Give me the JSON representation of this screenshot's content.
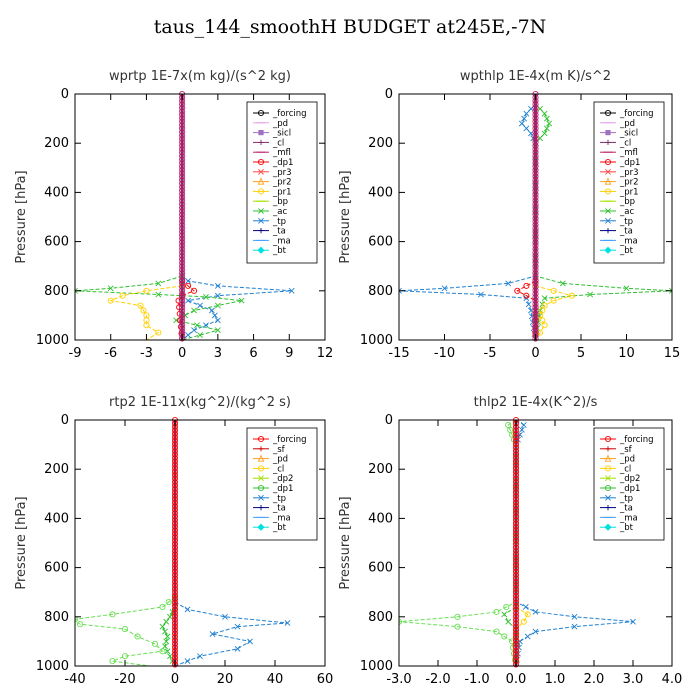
{
  "figure": {
    "title": "taus_144_smoothH  BUDGET at245E,-7N"
  },
  "chart_data": [
    {
      "type": "line",
      "title": "wprtp   1E-7x(m kg)/(s^2 kg)",
      "ylabel": "Pressure [hPa]",
      "xlim": [
        -9,
        12
      ],
      "ylim": [
        1000,
        0
      ],
      "xticks": [
        "-9",
        "-6",
        "-3",
        "0",
        "3",
        "6",
        "9",
        "12"
      ],
      "yticks": [
        "0",
        "200",
        "400",
        "600",
        "800",
        "1000"
      ],
      "legend": {
        "position": "top-right",
        "entries": [
          {
            "name": "_forcing",
            "color": "#000000",
            "marker": "o"
          },
          {
            "name": "_pd",
            "color": "#e8a0e8",
            "marker": "-"
          },
          {
            "name": "_sicl",
            "color": "#a070c0",
            "marker": "s"
          },
          {
            "name": "_cl",
            "color": "#7a2a6a",
            "marker": "+"
          },
          {
            "name": "_mfl",
            "color": "#c0206a",
            "marker": "-"
          },
          {
            "name": "_dp1",
            "color": "#ff0000",
            "marker": "o"
          },
          {
            "name": "_pr3",
            "color": "#ff4444",
            "marker": "x"
          },
          {
            "name": "_pr2",
            "color": "#ffa020",
            "marker": "^"
          },
          {
            "name": "_pr1",
            "color": "#ffd000",
            "marker": "o"
          },
          {
            "name": "_bp",
            "color": "#a0e000",
            "marker": "-"
          },
          {
            "name": "_ac",
            "color": "#30c030",
            "marker": "x"
          },
          {
            "name": "_tp",
            "color": "#2080d0",
            "marker": "x"
          },
          {
            "name": "_ta",
            "color": "#000080",
            "marker": "+"
          },
          {
            "name": "_ma",
            "color": "#40a0ff",
            "marker": "-"
          },
          {
            "name": "_bt",
            "color": "#00e0e0",
            "marker": "d"
          }
        ]
      },
      "series": [
        {
          "name": "_tp",
          "color": "#2080d0",
          "points": [
            [
              0,
              740
            ],
            [
              0.5,
              760
            ],
            [
              3,
              780
            ],
            [
              9.2,
              800
            ],
            [
              3,
              820
            ],
            [
              0.5,
              840
            ],
            [
              2.5,
              880
            ],
            [
              3,
              920
            ],
            [
              1,
              960
            ],
            [
              0,
              1000
            ]
          ]
        },
        {
          "name": "_ac",
          "color": "#30c030",
          "points": [
            [
              0,
              740
            ],
            [
              -2,
              770
            ],
            [
              -6,
              790
            ],
            [
              -9,
              800
            ],
            [
              -2,
              815
            ],
            [
              2,
              825
            ],
            [
              5,
              840
            ],
            [
              1,
              880
            ],
            [
              -0.5,
              920
            ],
            [
              3,
              960
            ],
            [
              0,
              1000
            ]
          ]
        },
        {
          "name": "_pr1",
          "color": "#ffd000",
          "points": [
            [
              0,
              780
            ],
            [
              -3,
              800
            ],
            [
              -5,
              820
            ],
            [
              -6,
              840
            ],
            [
              -3.5,
              860
            ],
            [
              -3,
              900
            ],
            [
              -3,
              940
            ],
            [
              -2,
              970
            ],
            [
              -3,
              1000
            ]
          ]
        },
        {
          "name": "_dp1",
          "color": "#ff0000",
          "points": [
            [
              0,
              760
            ],
            [
              0.5,
              780
            ],
            [
              1,
              800
            ],
            [
              0,
              820
            ],
            [
              -0.3,
              840
            ],
            [
              0,
              1000
            ]
          ]
        }
      ]
    },
    {
      "type": "line",
      "title": "wpthlp   1E-4x(m K)/s^2",
      "ylabel": "Pressure [hPa]",
      "xlim": [
        -15,
        15
      ],
      "ylim": [
        1000,
        0
      ],
      "xticks": [
        "-15",
        "-10",
        "-5",
        "0",
        "5",
        "10",
        "15"
      ],
      "yticks": [
        "0",
        "200",
        "400",
        "600",
        "800",
        "1000"
      ],
      "legend": {
        "position": "top-right",
        "entries": [
          {
            "name": "_forcing",
            "color": "#000000",
            "marker": "o"
          },
          {
            "name": "_pd",
            "color": "#e8a0e8",
            "marker": "-"
          },
          {
            "name": "_sicl",
            "color": "#a070c0",
            "marker": "s"
          },
          {
            "name": "_cl",
            "color": "#7a2a6a",
            "marker": "+"
          },
          {
            "name": "_mfl",
            "color": "#c0206a",
            "marker": "-"
          },
          {
            "name": "_dp1",
            "color": "#ff0000",
            "marker": "o"
          },
          {
            "name": "_pr3",
            "color": "#ff4444",
            "marker": "x"
          },
          {
            "name": "_pr2",
            "color": "#ffa020",
            "marker": "^"
          },
          {
            "name": "_pr1",
            "color": "#ffd000",
            "marker": "o"
          },
          {
            "name": "_bp",
            "color": "#a0e000",
            "marker": "-"
          },
          {
            "name": "_ac",
            "color": "#30c030",
            "marker": "x"
          },
          {
            "name": "_tp",
            "color": "#2080d0",
            "marker": "x"
          },
          {
            "name": "_ta",
            "color": "#000080",
            "marker": "+"
          },
          {
            "name": "_ma",
            "color": "#40a0ff",
            "marker": "-"
          },
          {
            "name": "_bt",
            "color": "#00e0e0",
            "marker": "d"
          }
        ]
      },
      "series": [
        {
          "name": "_tp",
          "color": "#2080d0",
          "points": [
            [
              0,
              40
            ],
            [
              -1,
              80
            ],
            [
              -1.5,
              120
            ],
            [
              -0.5,
              160
            ],
            [
              0,
              200
            ],
            [
              0,
              740
            ],
            [
              -3,
              770
            ],
            [
              -10,
              790
            ],
            [
              -15,
              800
            ],
            [
              -6,
              815
            ],
            [
              -1,
              830
            ],
            [
              -0.5,
              880
            ],
            [
              0,
              1000
            ]
          ]
        },
        {
          "name": "_ac",
          "color": "#30c030",
          "points": [
            [
              0,
              40
            ],
            [
              1,
              80
            ],
            [
              1.5,
              120
            ],
            [
              1,
              160
            ],
            [
              0,
              200
            ],
            [
              0,
              740
            ],
            [
              3,
              770
            ],
            [
              10,
              790
            ],
            [
              15,
              800
            ],
            [
              6,
              815
            ],
            [
              1,
              830
            ],
            [
              0.5,
              880
            ],
            [
              0,
              1000
            ]
          ]
        },
        {
          "name": "_pr1",
          "color": "#ffd000",
          "points": [
            [
              0,
              780
            ],
            [
              2,
              800
            ],
            [
              4,
              820
            ],
            [
              2,
              840
            ],
            [
              1,
              860
            ],
            [
              0.5,
              900
            ],
            [
              1,
              940
            ],
            [
              0,
              1000
            ]
          ]
        },
        {
          "name": "_dp1",
          "color": "#ff0000",
          "points": [
            [
              0,
              760
            ],
            [
              -1,
              780
            ],
            [
              -2,
              800
            ],
            [
              -1,
              820
            ],
            [
              0,
              840
            ],
            [
              0,
              1000
            ]
          ]
        }
      ]
    },
    {
      "type": "line",
      "title": "rtp2   1E-11x(kg^2)/(kg^2 s)",
      "ylabel": "Pressure [hPa]",
      "xlim": [
        -40,
        60
      ],
      "ylim": [
        1000,
        0
      ],
      "xticks": [
        "-40",
        "-20",
        "0",
        "20",
        "40",
        "60"
      ],
      "yticks": [
        "0",
        "200",
        "400",
        "600",
        "800",
        "1000"
      ],
      "legend": {
        "position": "top-right",
        "entries": [
          {
            "name": "_forcing",
            "color": "#ff0000",
            "marker": "o"
          },
          {
            "name": "_sf",
            "color": "#cc0000",
            "marker": "+"
          },
          {
            "name": "_pd",
            "color": "#ffa020",
            "marker": "^"
          },
          {
            "name": "_cl",
            "color": "#ffd000",
            "marker": "o"
          },
          {
            "name": "_dp2",
            "color": "#a0e000",
            "marker": "x"
          },
          {
            "name": "_dp1",
            "color": "#30c030",
            "marker": "o"
          },
          {
            "name": "_tp",
            "color": "#2080d0",
            "marker": "x"
          },
          {
            "name": "_ta",
            "color": "#000080",
            "marker": "+"
          },
          {
            "name": "_ma",
            "color": "#40a0ff",
            "marker": "-"
          },
          {
            "name": "_bt",
            "color": "#00e0e0",
            "marker": "d"
          }
        ]
      },
      "series": [
        {
          "name": "_dp1",
          "color": "#66e050",
          "points": [
            [
              0,
              720
            ],
            [
              -5,
              760
            ],
            [
              -25,
              790
            ],
            [
              -40,
              810
            ],
            [
              -38,
              830
            ],
            [
              -20,
              850
            ],
            [
              -15,
              880
            ],
            [
              -8,
              910
            ],
            [
              -5,
              940
            ],
            [
              -20,
              960
            ],
            [
              -25,
              980
            ],
            [
              -10,
              1000
            ]
          ]
        },
        {
          "name": "_tp",
          "color": "#2080d0",
          "points": [
            [
              0,
              740
            ],
            [
              5,
              770
            ],
            [
              20,
              800
            ],
            [
              45,
              825
            ],
            [
              25,
              840
            ],
            [
              15,
              870
            ],
            [
              30,
              900
            ],
            [
              25,
              930
            ],
            [
              10,
              960
            ],
            [
              0,
              1000
            ]
          ]
        },
        {
          "name": "_dp2",
          "color": "#30c030",
          "points": [
            [
              0,
              760
            ],
            [
              -2,
              800
            ],
            [
              -5,
              840
            ],
            [
              -3,
              880
            ],
            [
              -4,
              920
            ],
            [
              -2,
              960
            ],
            [
              0,
              1000
            ]
          ]
        }
      ]
    },
    {
      "type": "line",
      "title": "thlp2   1E-4x(K^2)/s",
      "ylabel": "Pressure [hPa]",
      "xlim": [
        -3.0,
        4.0
      ],
      "ylim": [
        1000,
        0
      ],
      "xticks": [
        "-3.0",
        "-2.0",
        "-1.0",
        "0.0",
        "1.0",
        "2.0",
        "3.0",
        "4.0"
      ],
      "yticks": [
        "0",
        "200",
        "400",
        "600",
        "800",
        "1000"
      ],
      "legend": {
        "position": "top-right",
        "entries": [
          {
            "name": "_forcing",
            "color": "#ff0000",
            "marker": "o"
          },
          {
            "name": "_sf",
            "color": "#cc0000",
            "marker": "+"
          },
          {
            "name": "_pd",
            "color": "#ffa020",
            "marker": "^"
          },
          {
            "name": "_cl",
            "color": "#ffd000",
            "marker": "o"
          },
          {
            "name": "_dp2",
            "color": "#a0e000",
            "marker": "x"
          },
          {
            "name": "_dp1",
            "color": "#30c030",
            "marker": "o"
          },
          {
            "name": "_tp",
            "color": "#2080d0",
            "marker": "x"
          },
          {
            "name": "_ta",
            "color": "#000080",
            "marker": "+"
          },
          {
            "name": "_ma",
            "color": "#40a0ff",
            "marker": "-"
          },
          {
            "name": "_bt",
            "color": "#00e0e0",
            "marker": "d"
          }
        ]
      },
      "series": [
        {
          "name": "_tp",
          "color": "#2080d0",
          "points": [
            [
              0,
              0
            ],
            [
              0.2,
              20
            ],
            [
              0.1,
              60
            ],
            [
              0,
              100
            ],
            [
              0,
              740
            ],
            [
              0.5,
              780
            ],
            [
              1.5,
              800
            ],
            [
              3,
              820
            ],
            [
              1.5,
              840
            ],
            [
              0.5,
              860
            ],
            [
              0.1,
              900
            ],
            [
              0,
              1000
            ]
          ]
        },
        {
          "name": "_dp1",
          "color": "#66e050",
          "points": [
            [
              0,
              0
            ],
            [
              -0.2,
              20
            ],
            [
              -0.1,
              60
            ],
            [
              0,
              100
            ],
            [
              0,
              740
            ],
            [
              -0.5,
              780
            ],
            [
              -1.5,
              800
            ],
            [
              -3,
              820
            ],
            [
              -1.5,
              840
            ],
            [
              -0.5,
              860
            ],
            [
              -0.1,
              900
            ],
            [
              0,
              1000
            ]
          ]
        },
        {
          "name": "_cl",
          "color": "#ffd000",
          "points": [
            [
              0,
              760
            ],
            [
              0.3,
              790
            ],
            [
              0.2,
              820
            ],
            [
              0,
              850
            ],
            [
              0,
              1000
            ]
          ]
        },
        {
          "name": "_dp2",
          "color": "#30c030",
          "points": [
            [
              0,
              760
            ],
            [
              -0.3,
              790
            ],
            [
              -0.2,
              820
            ],
            [
              0,
              850
            ],
            [
              0,
              1000
            ]
          ]
        }
      ]
    }
  ]
}
